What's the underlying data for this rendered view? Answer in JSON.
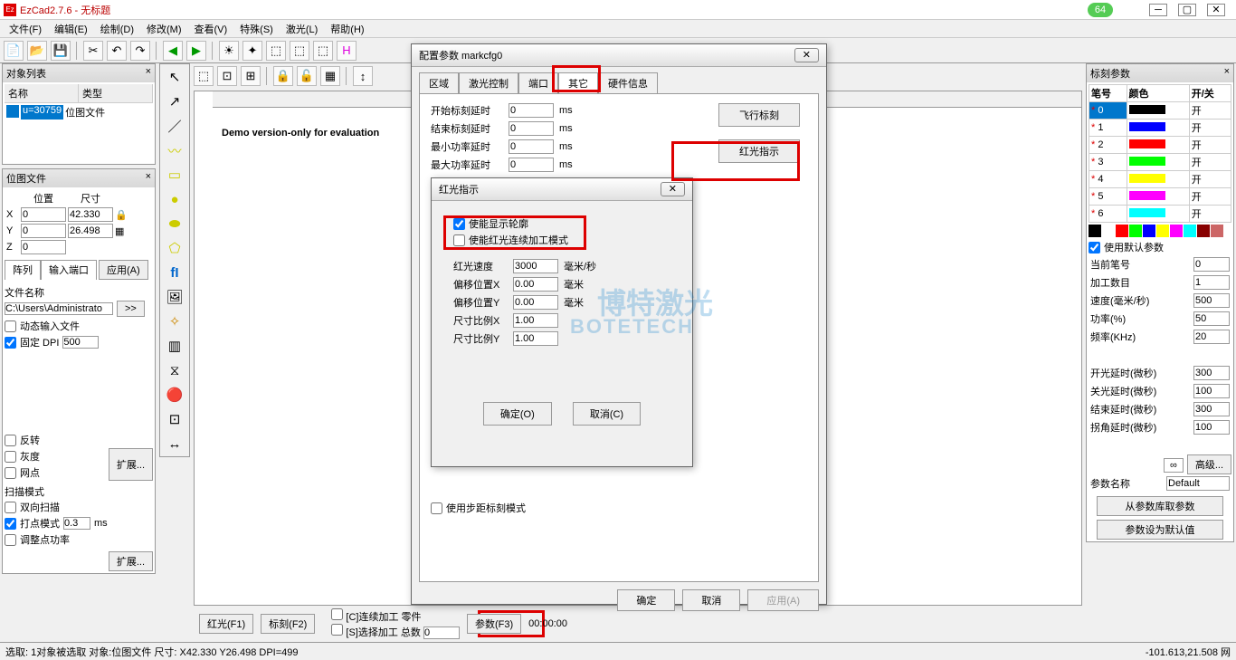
{
  "title": "EzCad2.7.6 - 无标题",
  "badge": "64",
  "menu": [
    "文件(F)",
    "编辑(E)",
    "绘制(D)",
    "修改(M)",
    "查看(V)",
    "特殊(S)",
    "激光(L)",
    "帮助(H)"
  ],
  "left": {
    "objlist": {
      "title": "对象列表",
      "cols": [
        "名称",
        "类型"
      ],
      "row": {
        "id": "u=30759",
        "type": "位图文件"
      }
    },
    "bmpfile": {
      "title": "位图文件",
      "pos": "位置",
      "size": "尺寸",
      "x": "0",
      "xw": "42.330",
      "y": "0",
      "yh": "26.498",
      "z": "0",
      "tabs": [
        "阵列",
        "输入端口"
      ],
      "apply": "应用(A)",
      "fname": "文件名称",
      "path": "C:\\Users\\Administrato",
      "morebtn": ">>",
      "dyn": "动态输入文件",
      "fixdpi": "固定 DPI",
      "dpi": "500"
    },
    "hatch": {
      "rev": "反转",
      "gray": "灰度",
      "dot": "网点",
      "ext": "扩展...",
      "scanmode": "扫描模式",
      "bidir": "双向扫描",
      "dotmode": "打点模式",
      "dotval": "0.3",
      "ms": "ms",
      "adj": "调整点功率"
    }
  },
  "canvas_text": "Demo version-only for evaluation",
  "dialog1": {
    "title": "配置参数 markcfg0",
    "tabs": [
      "区域",
      "激光控制",
      "端口",
      "其它",
      "硬件信息"
    ],
    "active_tab": "其它",
    "rows": [
      {
        "l": "开始标刻延时",
        "v": "0",
        "u": "ms"
      },
      {
        "l": "结束标刻延时",
        "v": "0",
        "u": "ms"
      },
      {
        "l": "最小功率延时",
        "v": "0",
        "u": "ms"
      },
      {
        "l": "最大功率延时",
        "v": "0",
        "u": "ms"
      }
    ],
    "flymark": "飞行标刻",
    "redlight": "红光指示",
    "step": "使用步距标刻模式",
    "ok": "确定",
    "cancel": "取消",
    "apply": "应用(A)"
  },
  "dialog2": {
    "title": "红光指示",
    "chk1": "使能显示轮廓",
    "chk2": "使能红光连续加工模式",
    "rows": [
      {
        "l": "红光速度",
        "v": "3000",
        "u": "毫米/秒"
      },
      {
        "l": "偏移位置X",
        "v": "0.00",
        "u": "毫米"
      },
      {
        "l": "偏移位置Y",
        "v": "0.00",
        "u": "毫米"
      },
      {
        "l": "尺寸比例X",
        "v": "1.00",
        "u": ""
      },
      {
        "l": "尺寸比例Y",
        "v": "1.00",
        "u": ""
      }
    ],
    "ok": "确定(O)",
    "cancel": "取消(C)"
  },
  "right": {
    "title": "标刻参数",
    "cols": [
      "笔号",
      "颜色",
      "开/关"
    ],
    "pens": [
      {
        "n": "0",
        "c": "#000000",
        "s": "开",
        "sel": true
      },
      {
        "n": "1",
        "c": "#0000ff",
        "s": "开"
      },
      {
        "n": "2",
        "c": "#ff0000",
        "s": "开"
      },
      {
        "n": "3",
        "c": "#00ff00",
        "s": "开"
      },
      {
        "n": "4",
        "c": "#ffff00",
        "s": "开"
      },
      {
        "n": "5",
        "c": "#ff00ff",
        "s": "开"
      },
      {
        "n": "6",
        "c": "#00ffff",
        "s": "开"
      }
    ],
    "colors": [
      "#000",
      "#fff",
      "#f00",
      "#0f0",
      "#00f",
      "#ff0",
      "#f0f",
      "#0ff",
      "#800",
      "#c66"
    ],
    "usedef": "使用默认参数",
    "params": [
      {
        "l": "当前笔号",
        "v": "0"
      },
      {
        "l": "加工数目",
        "v": "1"
      },
      {
        "l": "速度(毫米/秒)",
        "v": "500"
      },
      {
        "l": "功率(%)",
        "v": "50"
      },
      {
        "l": "频率(KHz)",
        "v": "20"
      }
    ],
    "params2": [
      {
        "l": "开光延时(微秒)",
        "v": "300"
      },
      {
        "l": "关光延时(微秒)",
        "v": "100"
      },
      {
        "l": "结束延时(微秒)",
        "v": "300"
      },
      {
        "l": "拐角延时(微秒)",
        "v": "100"
      }
    ],
    "adv": "高级...",
    "pname": "参数名称",
    "pval": "Default",
    "fromlib": "从参数库取参数",
    "setdef": "参数设为默认值"
  },
  "bottom": {
    "red": "红光(F1)",
    "mark": "标刻(F2)",
    "param": "参数(F3)",
    "cont": "[C]连续加工",
    "sel": "[S]选择加工",
    "parts": "零件",
    "total": "总数",
    "totalv": "0",
    "time": "00:00:00"
  },
  "status": {
    "left": "选取: 1对象被选取 对象:位图文件 尺寸: X42.330 Y26.498 DPI=499",
    "right": "-101.613,21.508  网"
  },
  "watermark1": "博特激光",
  "watermark2": "BOTETECH"
}
